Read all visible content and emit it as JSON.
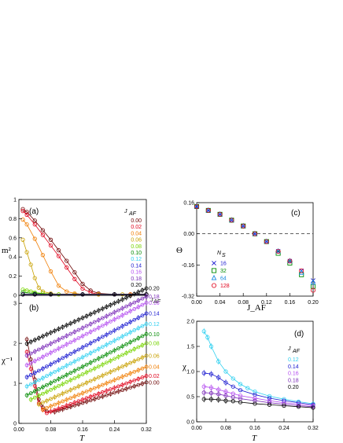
{
  "colors": {
    "0.00": "#6b0000",
    "0.02": "#e0001a",
    "0.04": "#f07c00",
    "0.06": "#c8a000",
    "0.08": "#77d400",
    "0.10": "#008a00",
    "0.12": "#2fd0f0",
    "0.14": "#1a1ad0",
    "0.16": "#b44cf0",
    "0.18": "#7a2ab8",
    "0.20": "#000000"
  },
  "chart_data": [
    {
      "id": "a",
      "type": "line",
      "panel_label": "(a)",
      "ylabel": "m²",
      "xlabel": "",
      "xlim": [
        0,
        0.32
      ],
      "ylim": [
        0,
        1.0
      ],
      "yticks": [
        "0",
        "0.2",
        "0.4",
        "0.6",
        "0.8",
        "1"
      ],
      "legend_title": "J_AF",
      "legend_placement": "top-right",
      "legend": [
        "0.00",
        "0.02",
        "0.04",
        "0.06",
        "0.08",
        "0.10",
        "0.12",
        "0.14",
        "0.16",
        "0.18",
        "0.20"
      ],
      "series": [
        {
          "name": "0.00",
          "x": [
            0.01,
            0.02,
            0.04,
            0.06,
            0.08,
            0.1,
            0.12,
            0.14,
            0.16,
            0.18,
            0.2,
            0.24,
            0.28,
            0.32
          ],
          "y": [
            0.9,
            0.87,
            0.78,
            0.68,
            0.58,
            0.47,
            0.36,
            0.24,
            0.12,
            0.05,
            0.02,
            0.01,
            0.01,
            0.01
          ]
        },
        {
          "name": "0.02",
          "x": [
            0.01,
            0.02,
            0.04,
            0.06,
            0.08,
            0.1,
            0.12,
            0.14,
            0.16,
            0.18,
            0.2,
            0.24,
            0.28,
            0.32
          ],
          "y": [
            0.88,
            0.84,
            0.74,
            0.63,
            0.52,
            0.41,
            0.29,
            0.17,
            0.07,
            0.03,
            0.01,
            0.01,
            0.01,
            0.01
          ]
        },
        {
          "name": "0.04",
          "x": [
            0.01,
            0.02,
            0.04,
            0.06,
            0.08,
            0.1,
            0.12,
            0.14,
            0.16,
            0.2,
            0.24,
            0.28,
            0.32
          ],
          "y": [
            0.79,
            0.74,
            0.59,
            0.42,
            0.25,
            0.1,
            0.04,
            0.02,
            0.01,
            0.01,
            0.01,
            0.01,
            0.01
          ]
        },
        {
          "name": "0.06",
          "x": [
            0.01,
            0.02,
            0.03,
            0.04,
            0.05,
            0.06,
            0.08,
            0.1,
            0.14,
            0.2,
            0.26,
            0.32
          ],
          "y": [
            0.58,
            0.45,
            0.32,
            0.18,
            0.08,
            0.04,
            0.02,
            0.01,
            0.01,
            0.01,
            0.01,
            0.01
          ]
        },
        {
          "name": "0.08",
          "x": [
            0.01,
            0.02,
            0.03,
            0.04,
            0.06,
            0.1,
            0.16,
            0.24,
            0.32
          ],
          "y": [
            0.06,
            0.05,
            0.04,
            0.03,
            0.02,
            0.01,
            0.01,
            0.01,
            0.01
          ]
        },
        {
          "name": "0.10",
          "x": [
            0.01,
            0.04,
            0.08,
            0.16,
            0.24,
            0.32
          ],
          "y": [
            0.03,
            0.02,
            0.01,
            0.01,
            0.01,
            0.01
          ]
        },
        {
          "name": "0.12",
          "x": [
            0.01,
            0.04,
            0.08,
            0.16,
            0.24,
            0.32
          ],
          "y": [
            0.01,
            0.01,
            0.01,
            0.01,
            0.01,
            0.01
          ]
        },
        {
          "name": "0.14",
          "x": [
            0.01,
            0.04,
            0.08,
            0.16,
            0.24,
            0.32
          ],
          "y": [
            0.01,
            0.01,
            0.01,
            0.01,
            0.01,
            0.01
          ]
        },
        {
          "name": "0.16",
          "x": [
            0.01,
            0.04,
            0.08,
            0.16,
            0.24,
            0.32
          ],
          "y": [
            0.01,
            0.01,
            0.01,
            0.01,
            0.01,
            0.01
          ]
        },
        {
          "name": "0.18",
          "x": [
            0.01,
            0.04,
            0.08,
            0.16,
            0.24,
            0.32
          ],
          "y": [
            0.01,
            0.01,
            0.01,
            0.01,
            0.01,
            0.01
          ]
        },
        {
          "name": "0.20",
          "x": [
            0.01,
            0.04,
            0.08,
            0.16,
            0.24,
            0.32
          ],
          "y": [
            0.01,
            0.01,
            0.01,
            0.01,
            0.01,
            0.01
          ]
        }
      ]
    },
    {
      "id": "b",
      "type": "line",
      "panel_label": "(b)",
      "ylabel": "χ⁻¹",
      "xlabel": "T",
      "xlim": [
        0,
        0.32
      ],
      "ylim": [
        0,
        3.2
      ],
      "xticks": [
        "0.00",
        "0.08",
        "0.16",
        "0.24",
        "0.32"
      ],
      "yticks": [
        "0",
        "1",
        "2",
        "3"
      ],
      "legend_title": "J_AF",
      "legend_placement": "right",
      "legend": [
        "0.20",
        "0.18",
        "0.16",
        "0.14",
        "0.12",
        "0.10",
        "0.08",
        "0.06",
        "0.04",
        "0.02",
        "0.00"
      ],
      "series": [
        {
          "name": "0.00",
          "intercept": 0.0,
          "slope": 3.2,
          "start": 0.09
        },
        {
          "name": "0.02",
          "intercept": 0.0,
          "slope": 3.7,
          "start": 0.08
        },
        {
          "name": "0.04",
          "intercept": 0.1,
          "slope": 4.1,
          "start": 0.06
        },
        {
          "name": "0.06",
          "intercept": 0.25,
          "slope": 4.5,
          "start": 0.05
        },
        {
          "name": "0.08",
          "intercept": 0.45,
          "slope": 4.85,
          "start": 0.03
        },
        {
          "name": "0.10",
          "intercept": 0.6,
          "slope": 5.1,
          "start": 0.02
        },
        {
          "name": "0.12",
          "intercept": 0.82,
          "slope": 5.2,
          "start": 0.02
        },
        {
          "name": "0.14",
          "intercept": 1.05,
          "slope": 5.3,
          "start": 0.02
        },
        {
          "name": "0.16",
          "intercept": 1.35,
          "slope": 5.2,
          "start": 0.02
        },
        {
          "name": "0.18",
          "intercept": 1.6,
          "slope": 4.9,
          "start": 0.02
        },
        {
          "name": "0.20",
          "intercept": 1.9,
          "slope": 4.6,
          "start": 0.02
        }
      ]
    },
    {
      "id": "c",
      "type": "scatter",
      "panel_label": "(c)",
      "ylabel": "Θ",
      "xlabel": "J_AF",
      "xlim": [
        0,
        0.2
      ],
      "ylim": [
        -0.32,
        0.16
      ],
      "xticks": [
        "0.00",
        "0.04",
        "0.08",
        "0.12",
        "0.16",
        "0.20"
      ],
      "yticks": [
        "0.16",
        "0.00",
        "-0.16",
        "-0.32"
      ],
      "legend_title": "N_S",
      "legend_placement": "middle-left",
      "dashed_zero_line": true,
      "x": [
        0.0,
        0.02,
        0.04,
        0.06,
        0.08,
        0.1,
        0.12,
        0.14,
        0.16,
        0.18,
        0.2
      ],
      "series": [
        {
          "name": "16",
          "marker": "x",
          "color": "#1a1ad0",
          "y": [
            0.14,
            0.12,
            0.1,
            0.07,
            0.04,
            0.0,
            -0.04,
            -0.09,
            -0.14,
            -0.19,
            -0.24
          ]
        },
        {
          "name": "32",
          "marker": "square",
          "color": "#008a00",
          "y": [
            0.14,
            0.12,
            0.1,
            0.07,
            0.04,
            0.0,
            -0.04,
            -0.1,
            -0.15,
            -0.21,
            -0.27
          ]
        },
        {
          "name": "64",
          "marker": "triangle",
          "color": "#1a8ae0",
          "y": [
            0.14,
            0.12,
            0.1,
            0.07,
            0.04,
            0.0,
            -0.04,
            -0.09,
            -0.14,
            -0.2,
            -0.25
          ]
        },
        {
          "name": "128",
          "marker": "circle",
          "color": "#e0001a",
          "y": [
            0.14,
            0.12,
            0.1,
            0.07,
            0.04,
            0.0,
            -0.04,
            -0.09,
            -0.14,
            -0.19,
            -0.29
          ]
        }
      ]
    },
    {
      "id": "d",
      "type": "line",
      "panel_label": "(d)",
      "ylabel": "χ",
      "xlabel": "T",
      "xlim": [
        0,
        0.32
      ],
      "ylim": [
        0,
        2.0
      ],
      "xticks": [
        "0.00",
        "0.08",
        "0.16",
        "0.24",
        "0.32"
      ],
      "yticks": [
        "0.0",
        "0.5",
        "1.0",
        "1.5",
        "2.0"
      ],
      "legend_title": "J_AF",
      "legend_placement": "right",
      "legend": [
        "0.12",
        "0.14",
        "0.16",
        "0.18",
        "0.20"
      ],
      "series": [
        {
          "name": "0.12",
          "x": [
            0.02,
            0.03,
            0.04,
            0.06,
            0.08,
            0.1,
            0.12,
            0.14,
            0.16,
            0.2,
            0.24,
            0.28,
            0.32
          ],
          "y": [
            1.8,
            1.68,
            1.5,
            1.2,
            1.0,
            0.86,
            0.75,
            0.67,
            0.6,
            0.51,
            0.45,
            0.4,
            0.36
          ]
        },
        {
          "name": "0.14",
          "x": [
            0.02,
            0.04,
            0.06,
            0.08,
            0.1,
            0.12,
            0.16,
            0.2,
            0.24,
            0.28,
            0.32
          ],
          "y": [
            0.97,
            0.95,
            0.88,
            0.78,
            0.7,
            0.63,
            0.54,
            0.47,
            0.42,
            0.38,
            0.34
          ]
        },
        {
          "name": "0.16",
          "x": [
            0.02,
            0.04,
            0.06,
            0.08,
            0.1,
            0.12,
            0.16,
            0.2,
            0.24,
            0.28,
            0.32
          ],
          "y": [
            0.7,
            0.68,
            0.64,
            0.6,
            0.56,
            0.52,
            0.47,
            0.42,
            0.38,
            0.35,
            0.32
          ]
        },
        {
          "name": "0.18",
          "x": [
            0.02,
            0.04,
            0.06,
            0.08,
            0.1,
            0.12,
            0.16,
            0.2,
            0.24,
            0.28,
            0.32
          ],
          "y": [
            0.58,
            0.57,
            0.55,
            0.52,
            0.49,
            0.46,
            0.42,
            0.38,
            0.35,
            0.32,
            0.3
          ]
        },
        {
          "name": "0.20",
          "x": [
            0.02,
            0.04,
            0.06,
            0.08,
            0.1,
            0.12,
            0.16,
            0.2,
            0.24,
            0.28,
            0.32
          ],
          "y": [
            0.45,
            0.45,
            0.44,
            0.42,
            0.41,
            0.39,
            0.36,
            0.34,
            0.32,
            0.3,
            0.28
          ]
        }
      ]
    }
  ]
}
